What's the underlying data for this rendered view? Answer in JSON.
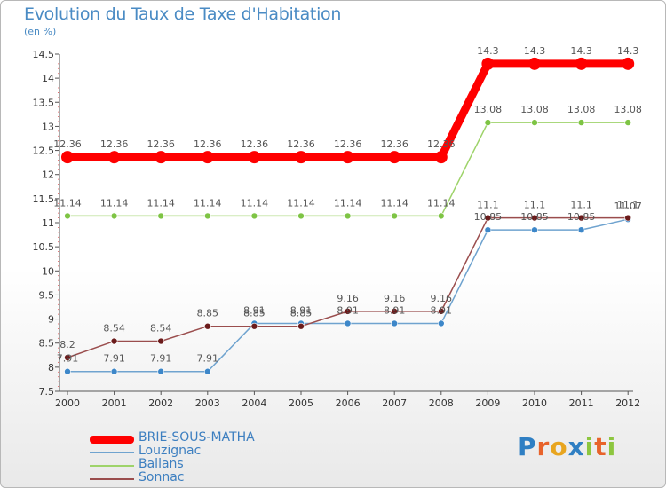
{
  "title": "Evolution du Taux de Taxe d'Habitation",
  "unit_label": "(en %)",
  "brand": {
    "text": "Proxiti",
    "letter_colors": [
      "#2f7fc3",
      "#e8632b",
      "#e8a51f",
      "#2f7fc3",
      "#8dc63f",
      "#e8632b",
      "#8dc63f"
    ]
  },
  "chart_data": {
    "type": "line",
    "title": "Evolution du Taux de Taxe d'Habitation",
    "ylabel": "(en %)",
    "xlabel": "",
    "x": [
      "2000",
      "2001",
      "2002",
      "2003",
      "2004",
      "2005",
      "2006",
      "2007",
      "2008",
      "2009",
      "2010",
      "2011",
      "2012"
    ],
    "ylim": [
      7.5,
      14.5
    ],
    "yticks": [
      "7.5",
      "8",
      "8.5",
      "9",
      "9.5",
      "10",
      "10.5",
      "11",
      "11.5",
      "12",
      "12.5",
      "13",
      "13.5",
      "14",
      "14.5"
    ],
    "grid": false,
    "legend_position": "bottom-left",
    "series": [
      {
        "name": "BRIE-SOUS-MATHA",
        "color": "#ff0000",
        "emphasis": "thick",
        "values": [
          12.36,
          12.36,
          12.36,
          12.36,
          12.36,
          12.36,
          12.36,
          12.36,
          12.36,
          14.3,
          14.3,
          14.3,
          14.3
        ],
        "labels": [
          "12.36",
          "12.36",
          "12.36",
          "12.36",
          "12.36",
          "12.36",
          "12.36",
          "12.36",
          "12.36",
          "14.3",
          "14.3",
          "14.3",
          "14.3"
        ]
      },
      {
        "name": "Louzignac",
        "color": "#6fa3cf",
        "marker_color": "#3d87c9",
        "values": [
          7.91,
          7.91,
          7.91,
          7.91,
          8.91,
          8.91,
          8.91,
          8.91,
          8.91,
          10.85,
          10.85,
          10.85,
          11.07
        ],
        "labels": [
          "7.91",
          "7.91",
          "7.91",
          "7.91",
          "8.91",
          "8.91",
          "8.91",
          "8.91",
          "8.91",
          "10.85",
          "10.85",
          "10.85",
          "11.07"
        ]
      },
      {
        "name": "Ballans",
        "color": "#9ed36a",
        "marker_color": "#7ec444",
        "values": [
          11.14,
          11.14,
          11.14,
          11.14,
          11.14,
          11.14,
          11.14,
          11.14,
          11.14,
          13.08,
          13.08,
          13.08,
          13.08
        ],
        "labels": [
          "11.14",
          "11.14",
          "11.14",
          "11.14",
          "11.14",
          "11.14",
          "11.14",
          "11.14",
          "11.14",
          "13.08",
          "13.08",
          "13.08",
          "13.08"
        ]
      },
      {
        "name": "Sonnac",
        "color": "#9a4d4d",
        "marker_color": "#6b1b1b",
        "values": [
          8.2,
          8.54,
          8.54,
          8.85,
          8.85,
          8.85,
          9.16,
          9.16,
          9.16,
          11.1,
          11.1,
          11.1,
          11.1
        ],
        "labels": [
          "8.2",
          "8.54",
          "8.54",
          "8.85",
          "8.85",
          "8.85",
          "9.16",
          "9.16",
          "9.16",
          "11.1",
          "11.1",
          "11.1",
          "11.1"
        ]
      }
    ]
  }
}
